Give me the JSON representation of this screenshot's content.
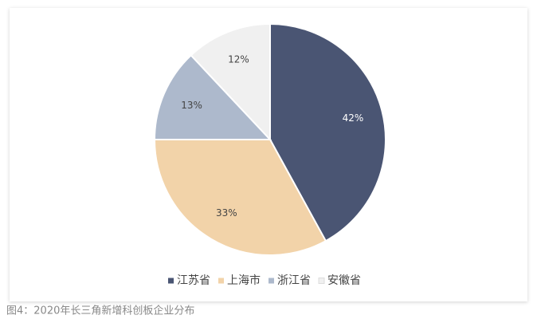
{
  "chart_data": {
    "type": "pie",
    "categories": [
      "江苏省",
      "上海市",
      "浙江省",
      "安徽省"
    ],
    "values": [
      42,
      33,
      13,
      12
    ],
    "value_labels": [
      "42%",
      "33%",
      "13%",
      "12%"
    ],
    "colors": [
      "#4a5573",
      "#f2d3a9",
      "#adb9cc",
      "#f0f0f0"
    ],
    "legend": "bottom",
    "caption": "图4：2020年长三角新增科创板企业分布"
  }
}
